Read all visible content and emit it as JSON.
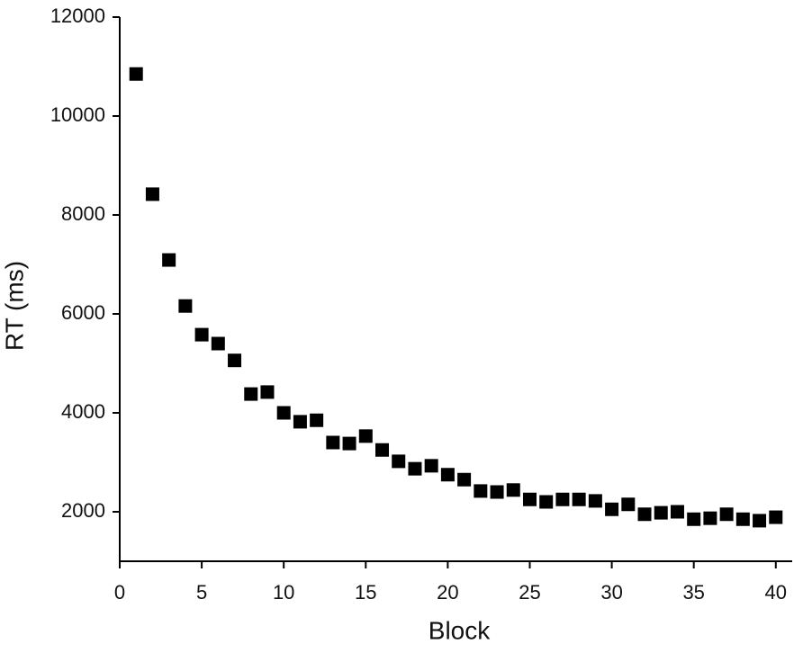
{
  "chart_data": {
    "type": "scatter",
    "x_label": "Block",
    "y_label": "RT (ms)",
    "x": [
      1,
      2,
      3,
      4,
      5,
      6,
      7,
      8,
      9,
      10,
      11,
      12,
      13,
      14,
      15,
      16,
      17,
      18,
      19,
      20,
      21,
      22,
      23,
      24,
      25,
      26,
      27,
      28,
      29,
      30,
      31,
      32,
      33,
      34,
      35,
      36,
      37,
      38,
      39,
      40
    ],
    "values": [
      10850,
      8420,
      7090,
      6160,
      5580,
      5400,
      5060,
      4380,
      4420,
      4000,
      3820,
      3850,
      3400,
      3380,
      3530,
      3250,
      3020,
      2870,
      2930,
      2750,
      2650,
      2420,
      2400,
      2440,
      2250,
      2200,
      2250,
      2250,
      2220,
      2050,
      2150,
      1950,
      1980,
      2000,
      1850,
      1870,
      1950,
      1850,
      1820,
      1890
    ],
    "color": "#000000",
    "xlim": [
      0,
      41
    ],
    "ylim": [
      1000,
      12000
    ],
    "xticks": [
      0,
      5,
      10,
      15,
      20,
      25,
      30,
      35,
      40
    ],
    "yticks": [
      2000,
      4000,
      6000,
      8000,
      10000,
      12000
    ]
  }
}
